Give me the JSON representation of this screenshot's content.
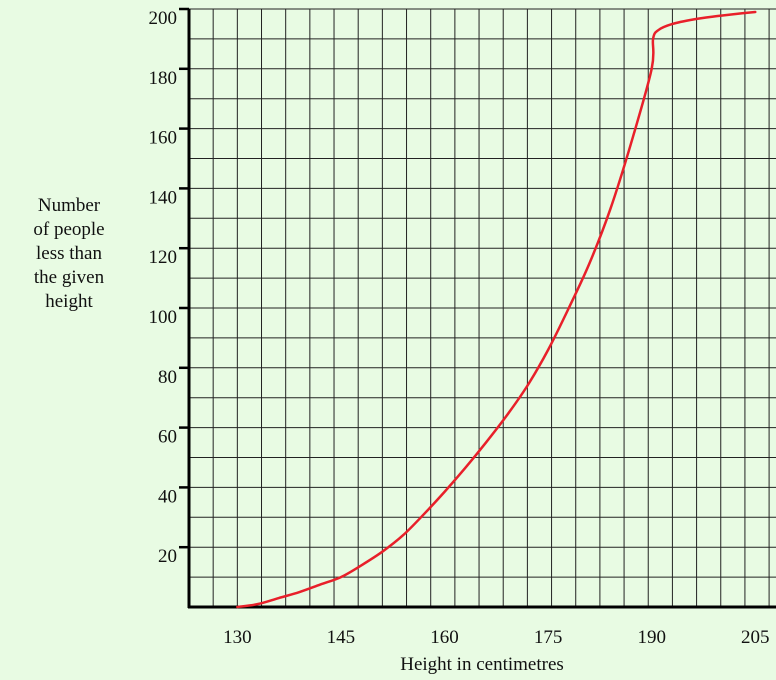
{
  "chart_data": {
    "type": "line",
    "title": "",
    "xlabel": "Height in centimetres",
    "ylabel_lines": [
      "Number",
      "of people",
      "less than",
      "the given",
      "height"
    ],
    "xlim": [
      123,
      208
    ],
    "ylim": [
      0,
      200
    ],
    "x_ticks": [
      130,
      145,
      160,
      175,
      190,
      205
    ],
    "y_ticks": [
      20,
      40,
      60,
      80,
      100,
      120,
      140,
      160,
      180,
      200
    ],
    "grid": true,
    "grid_x_step": 3.5,
    "grid_y_step": 10,
    "line_color": "#e8202a",
    "series": [
      {
        "x": [
          130,
          133,
          136,
          139,
          142,
          145,
          148,
          151,
          154,
          157,
          160,
          163,
          166,
          169,
          172,
          175,
          178,
          181,
          184,
          187,
          190,
          190.2,
          191,
          193,
          196,
          199,
          202,
          205
        ],
        "y": [
          0,
          1,
          3,
          5,
          7.5,
          10,
          14,
          18.5,
          24,
          31,
          38.5,
          46.5,
          55,
          64,
          74,
          86,
          100,
          115,
          133,
          155,
          180,
          190,
          193,
          195,
          196.5,
          197.5,
          198.3,
          199
        ]
      }
    ]
  }
}
